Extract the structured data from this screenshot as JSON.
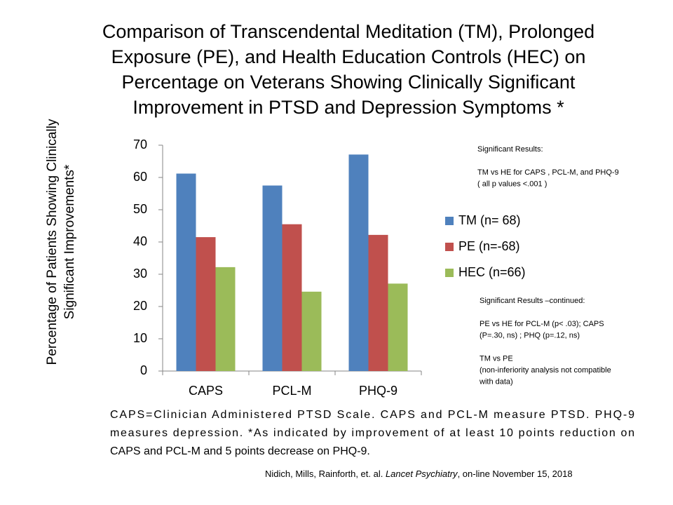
{
  "chart_data": {
    "type": "bar",
    "title": [
      "Comparison of Transcendental Meditation (TM), Prolonged",
      "Exposure (PE), and Health Education Controls (HEC) on",
      "Percentage on Veterans Showing Clinically Significant",
      "Improvement in PTSD and Depression Symptoms *"
    ],
    "y_label": [
      "Percentage of Patients Showing Clinically",
      "Significant Improvements*"
    ],
    "categories": [
      "CAPS",
      "PCL-M",
      "PHQ-9"
    ],
    "series": [
      {
        "name": "TM (n= 68)",
        "color": "#4f81bd",
        "values": [
          61.2,
          57.5,
          67.1
        ]
      },
      {
        "name": "PE (n=-68)",
        "color": "#c0504d",
        "values": [
          41.5,
          45.5,
          42.2
        ]
      },
      {
        "name": "HEC (n=66)",
        "color": "#9bbb59",
        "values": [
          32.2,
          24.6,
          27.1
        ]
      }
    ],
    "ylim": [
      0,
      70
    ],
    "yticks": [
      0,
      10,
      20,
      30,
      40,
      50,
      60,
      70
    ],
    "grid": false,
    "legend": "right",
    "notes": [
      [
        [
          "Significant Results:"
        ],
        [
          "TM vs HE for CAPS , PCL-M, and PHQ-9",
          "( all p values <.001 )"
        ]
      ],
      [
        [
          "Significant Results –continued:"
        ],
        [
          "PE vs HE for PCL-M (p< .03); CAPS",
          "(P=.30, ns) ; PHQ (p=.12, ns)"
        ],
        [
          "TM vs PE",
          "(non-inferiority analysis not compatible",
          "with data)"
        ]
      ]
    ],
    "footnote": [
      "CAPS=Clinician Administered PTSD Scale. CAPS and PCL-M measure PTSD. PHQ-9",
      "measures depression. *As indicated by improvement of at least 10 points reduction on",
      "CAPS and PCL-M and 5 points decrease on PHQ-9."
    ],
    "citation": [
      "Nidich, Mills, Rainforth, et. al. ",
      "Lancet Psychiatry",
      ", on-line  November 15, 2018"
    ]
  }
}
